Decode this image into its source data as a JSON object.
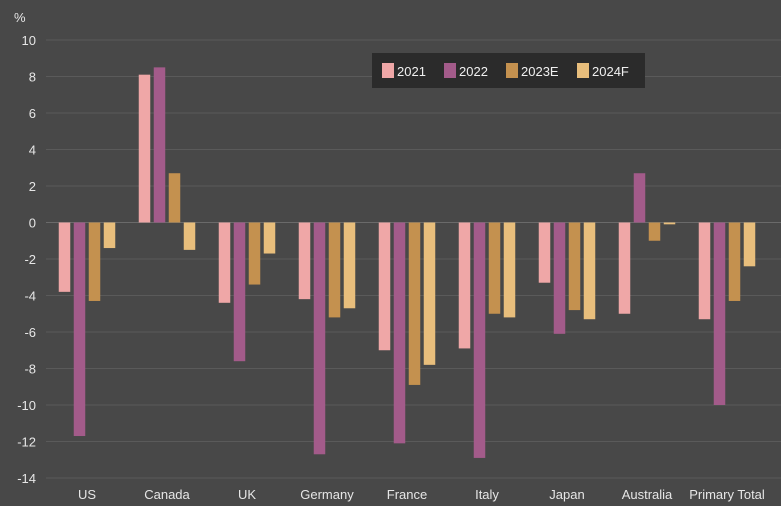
{
  "chart_data": {
    "type": "bar",
    "title": "",
    "xlabel": "",
    "ylabel": "%",
    "ylim": [
      -14,
      10
    ],
    "yticks": [
      10,
      8,
      6,
      4,
      2,
      0,
      -2,
      -4,
      -6,
      -8,
      -10,
      -12,
      -14
    ],
    "grid": true,
    "legend_position": "top-right",
    "categories": [
      "US",
      "Canada",
      "UK",
      "Germany",
      "France",
      "Italy",
      "Japan",
      "Australia",
      "Primary Total"
    ],
    "series": [
      {
        "name": "2021",
        "color": "#efa7a7",
        "values": [
          -3.8,
          8.1,
          -4.4,
          -4.2,
          -7.0,
          -6.9,
          -3.3,
          -5.0,
          -5.3
        ]
      },
      {
        "name": "2022",
        "color": "#a35b8a",
        "values": [
          -11.7,
          8.5,
          -7.6,
          -12.7,
          -12.1,
          -12.9,
          -6.1,
          2.7,
          -10.0
        ]
      },
      {
        "name": "2023E",
        "color": "#c4914f",
        "values": [
          -4.3,
          2.7,
          -3.4,
          -5.2,
          -8.9,
          -5.0,
          -4.8,
          -1.0,
          -4.3
        ]
      },
      {
        "name": "2024F",
        "color": "#e8be7c",
        "values": [
          -1.4,
          -1.5,
          -1.7,
          -4.7,
          -7.8,
          -5.2,
          -5.3,
          -0.1,
          -2.4
        ]
      }
    ]
  }
}
